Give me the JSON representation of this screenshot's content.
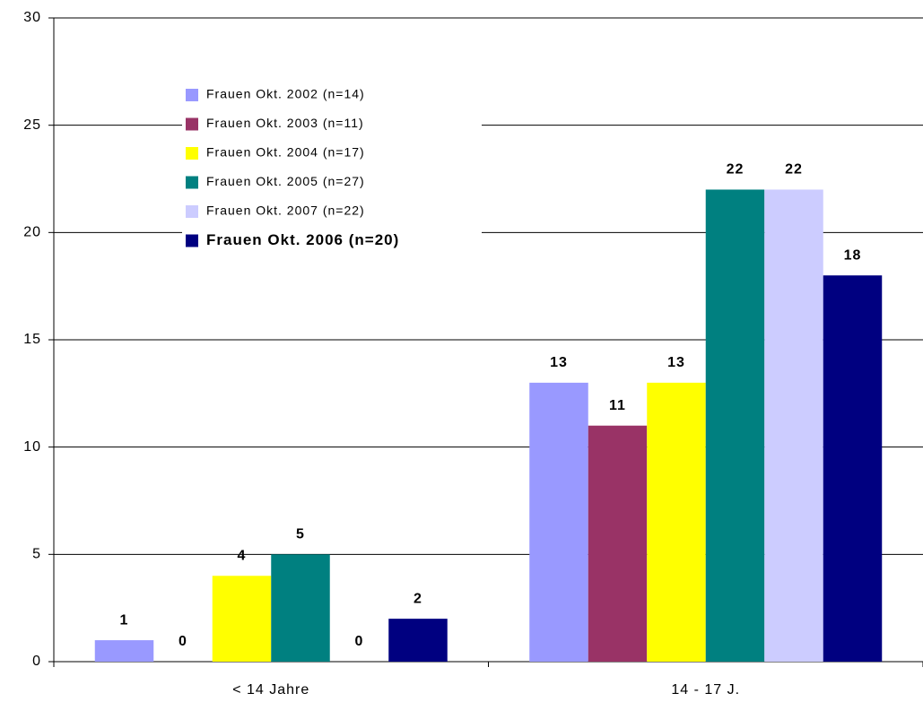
{
  "chart_data": {
    "type": "bar",
    "categories": [
      "< 14 Jahre",
      "14 - 17 J."
    ],
    "series": [
      {
        "name": "Frauen Okt. 2002 (n=14)",
        "color": "#9999ff",
        "values": [
          1,
          13
        ]
      },
      {
        "name": "Frauen Okt. 2003 (n=11)",
        "color": "#993366",
        "values": [
          0,
          11
        ]
      },
      {
        "name": "Frauen Okt. 2004 (n=17)",
        "color": "#ffff00",
        "values": [
          4,
          13
        ]
      },
      {
        "name": "Frauen Okt. 2005 (n=27)",
        "color": "#008080",
        "values": [
          5,
          22
        ]
      },
      {
        "name": "Frauen Okt. 2007 (n=22)",
        "color": "#ccccff",
        "values": [
          0,
          22
        ]
      },
      {
        "name": "Frauen Okt. 2006 (n=20)",
        "color": "#000080",
        "values": [
          2,
          18
        ],
        "bold": true
      }
    ],
    "ylim": [
      0,
      30
    ],
    "yticks": [
      0,
      5,
      10,
      15,
      20,
      25,
      30
    ],
    "grid": true,
    "legend": "upper left"
  }
}
